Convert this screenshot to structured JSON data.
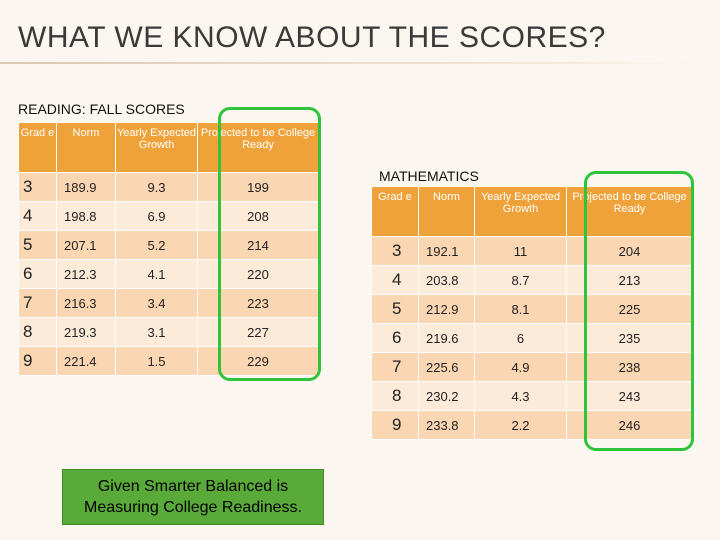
{
  "title": "WHAT WE KNOW ABOUT THE SCORES?",
  "reading": {
    "label": "READING: FALL SCORES",
    "headers": [
      "Grad e",
      "Norm",
      "Yearly Expected Growth",
      "Projected to be College Ready"
    ],
    "rows": [
      [
        "3",
        "189.9",
        "9.3",
        "199"
      ],
      [
        "4",
        "198.8",
        "6.9",
        "208"
      ],
      [
        "5",
        "207.1",
        "5.2",
        "214"
      ],
      [
        "6",
        "212.3",
        "4.1",
        "220"
      ],
      [
        "7",
        "216.3",
        "3.4",
        "223"
      ],
      [
        "8",
        "219.3",
        "3.1",
        "227"
      ],
      [
        "9",
        "221.4",
        "1.5",
        "229"
      ]
    ]
  },
  "math": {
    "label": "MATHEMATICS",
    "headers": [
      "Grad e",
      "Norm",
      "Yearly Expected Growth",
      "Projected to be College Ready"
    ],
    "rows": [
      [
        "3",
        "192.1",
        "11",
        "204"
      ],
      [
        "4",
        "203.8",
        "8.7",
        "213"
      ],
      [
        "5",
        "212.9",
        "8.1",
        "225"
      ],
      [
        "6",
        "219.6",
        "6",
        "235"
      ],
      [
        "7",
        "225.6",
        "4.9",
        "238"
      ],
      [
        "8",
        "230.2",
        "4.3",
        "243"
      ],
      [
        "9",
        "233.8",
        "2.2",
        "246"
      ]
    ]
  },
  "note": "Given Smarter Balanced is Measuring College Readiness.",
  "colors": {
    "header": "#f0a23a",
    "row_dark": "#fbd6b2",
    "row_light": "#fdebd9",
    "highlight": "#2fc43a",
    "note_bg": "#5aaa3a"
  }
}
